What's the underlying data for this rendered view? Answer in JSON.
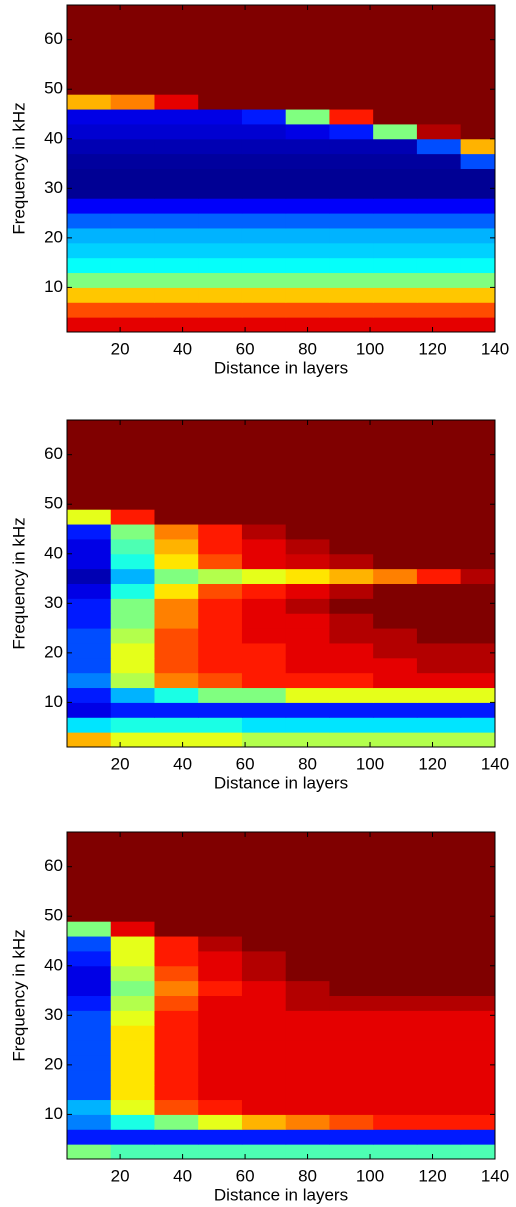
{
  "chart_data": [
    {
      "type": "heatmap",
      "colormap": "jet",
      "xlabel": "Distance in layers",
      "ylabel": "Frequency in kHz",
      "xlim": [
        3,
        140
      ],
      "ylim": [
        1,
        67
      ],
      "xticks": [
        20,
        40,
        60,
        80,
        100,
        120,
        140
      ],
      "yticks": [
        10,
        20,
        30,
        40,
        50,
        60
      ],
      "zlim": [
        0,
        1
      ],
      "x": [
        10,
        24,
        38,
        52,
        66,
        80,
        94,
        108,
        122,
        136
      ],
      "y": [
        2.5,
        5.5,
        8.5,
        11.5,
        14.5,
        17.5,
        20.5,
        23.5,
        26.5,
        29.5,
        32.5,
        35.5,
        38.5,
        41.5,
        44.5,
        47.5,
        50.5,
        53.5,
        56.5,
        59.5,
        62.5,
        65.5
      ],
      "z": [
        [
          0.9,
          0.9,
          0.9,
          0.9,
          0.9,
          0.9,
          0.9,
          0.9,
          0.9,
          0.9
        ],
        [
          0.8,
          0.8,
          0.8,
          0.8,
          0.8,
          0.8,
          0.8,
          0.8,
          0.8,
          0.8
        ],
        [
          0.68,
          0.68,
          0.68,
          0.68,
          0.68,
          0.68,
          0.68,
          0.68,
          0.68,
          0.68
        ],
        [
          0.5,
          0.5,
          0.5,
          0.5,
          0.5,
          0.5,
          0.5,
          0.5,
          0.5,
          0.5
        ],
        [
          0.38,
          0.38,
          0.38,
          0.38,
          0.38,
          0.38,
          0.38,
          0.38,
          0.38,
          0.38
        ],
        [
          0.33,
          0.33,
          0.33,
          0.33,
          0.33,
          0.33,
          0.33,
          0.33,
          0.33,
          0.33
        ],
        [
          0.3,
          0.3,
          0.3,
          0.3,
          0.3,
          0.3,
          0.3,
          0.3,
          0.3,
          0.3
        ],
        [
          0.22,
          0.22,
          0.22,
          0.22,
          0.22,
          0.22,
          0.22,
          0.22,
          0.22,
          0.22
        ],
        [
          0.12,
          0.12,
          0.12,
          0.12,
          0.12,
          0.12,
          0.12,
          0.12,
          0.12,
          0.12
        ],
        [
          0.02,
          0.02,
          0.02,
          0.02,
          0.02,
          0.02,
          0.02,
          0.02,
          0.02,
          0.02
        ],
        [
          0.02,
          0.02,
          0.02,
          0.02,
          0.02,
          0.02,
          0.02,
          0.02,
          0.02,
          0.02
        ],
        [
          0.03,
          0.03,
          0.03,
          0.03,
          0.03,
          0.03,
          0.03,
          0.03,
          0.03,
          0.2
        ],
        [
          0.05,
          0.05,
          0.05,
          0.05,
          0.05,
          0.05,
          0.05,
          0.05,
          0.2,
          0.7
        ],
        [
          0.08,
          0.08,
          0.08,
          0.08,
          0.08,
          0.1,
          0.15,
          0.5,
          0.95,
          1
        ],
        [
          0.1,
          0.1,
          0.1,
          0.1,
          0.15,
          0.5,
          0.85,
          1,
          1,
          1
        ],
        [
          0.7,
          0.75,
          0.9,
          1,
          1,
          1,
          1,
          1,
          1,
          1
        ],
        [
          1,
          1,
          1,
          1,
          1,
          1,
          1,
          1,
          1,
          1
        ],
        [
          1,
          1,
          1,
          1,
          1,
          1,
          1,
          1,
          1,
          1
        ],
        [
          1,
          1,
          1,
          1,
          1,
          1,
          1,
          1,
          1,
          1
        ],
        [
          1,
          1,
          1,
          1,
          1,
          1,
          1,
          1,
          1,
          1
        ],
        [
          1,
          1,
          1,
          1,
          1,
          1,
          1,
          1,
          1,
          1
        ],
        [
          1,
          1,
          1,
          1,
          1,
          1,
          1,
          1,
          1,
          1
        ]
      ]
    },
    {
      "type": "heatmap",
      "colormap": "jet",
      "xlabel": "Distance in layers",
      "ylabel": "Frequency in kHz",
      "xlim": [
        3,
        140
      ],
      "ylim": [
        1,
        67
      ],
      "xticks": [
        20,
        40,
        60,
        80,
        100,
        120,
        140
      ],
      "yticks": [
        10,
        20,
        30,
        40,
        50,
        60
      ],
      "zlim": [
        0,
        1
      ],
      "x": [
        10,
        24,
        38,
        52,
        66,
        80,
        94,
        108,
        122,
        136
      ],
      "y": [
        2.5,
        5.5,
        8.5,
        11.5,
        14.5,
        17.5,
        20.5,
        23.5,
        26.5,
        29.5,
        32.5,
        35.5,
        38.5,
        41.5,
        44.5,
        47.5,
        50.5,
        53.5,
        56.5,
        59.5,
        62.5,
        65.5
      ],
      "z": [
        [
          0.7,
          0.6,
          0.6,
          0.6,
          0.55,
          0.55,
          0.55,
          0.55,
          0.55,
          0.55
        ],
        [
          0.35,
          0.4,
          0.4,
          0.4,
          0.35,
          0.35,
          0.35,
          0.35,
          0.35,
          0.35
        ],
        [
          0.1,
          0.15,
          0.15,
          0.15,
          0.15,
          0.15,
          0.15,
          0.15,
          0.15,
          0.15
        ],
        [
          0.15,
          0.3,
          0.4,
          0.5,
          0.5,
          0.6,
          0.6,
          0.6,
          0.6,
          0.6
        ],
        [
          0.25,
          0.55,
          0.75,
          0.8,
          0.85,
          0.85,
          0.85,
          0.9,
          0.9,
          0.9
        ],
        [
          0.2,
          0.6,
          0.8,
          0.85,
          0.85,
          0.9,
          0.9,
          0.9,
          0.95,
          0.95
        ],
        [
          0.2,
          0.6,
          0.8,
          0.85,
          0.85,
          0.9,
          0.9,
          0.95,
          0.95,
          0.95
        ],
        [
          0.2,
          0.55,
          0.8,
          0.85,
          0.9,
          0.9,
          0.95,
          0.95,
          1,
          1
        ],
        [
          0.15,
          0.5,
          0.75,
          0.85,
          0.9,
          0.9,
          0.95,
          1,
          1,
          1
        ],
        [
          0.15,
          0.5,
          0.75,
          0.85,
          0.9,
          0.95,
          1,
          1,
          1,
          1
        ],
        [
          0.1,
          0.4,
          0.65,
          0.8,
          0.85,
          0.9,
          0.95,
          1,
          1,
          1
        ],
        [
          0.05,
          0.3,
          0.5,
          0.55,
          0.6,
          0.65,
          0.7,
          0.75,
          0.85,
          0.95
        ],
        [
          0.1,
          0.4,
          0.65,
          0.8,
          0.9,
          0.92,
          0.95,
          1,
          1,
          1
        ],
        [
          0.1,
          0.45,
          0.7,
          0.85,
          0.9,
          0.95,
          1,
          1,
          1,
          1
        ],
        [
          0.15,
          0.5,
          0.75,
          0.85,
          0.95,
          1,
          1,
          1,
          1,
          1
        ],
        [
          0.6,
          0.85,
          1,
          1,
          1,
          1,
          1,
          1,
          1,
          1
        ],
        [
          1,
          1,
          1,
          1,
          1,
          1,
          1,
          1,
          1,
          1
        ],
        [
          1,
          1,
          1,
          1,
          1,
          1,
          1,
          1,
          1,
          1
        ],
        [
          1,
          1,
          1,
          1,
          1,
          1,
          1,
          1,
          1,
          1
        ],
        [
          1,
          1,
          1,
          1,
          1,
          1,
          1,
          1,
          1,
          1
        ],
        [
          1,
          1,
          1,
          1,
          1,
          1,
          1,
          1,
          1,
          1
        ],
        [
          1,
          1,
          1,
          1,
          1,
          1,
          1,
          1,
          1,
          1
        ]
      ]
    },
    {
      "type": "heatmap",
      "colormap": "jet",
      "xlabel": "Distance in layers",
      "ylabel": "Frequency in kHz",
      "xlim": [
        3,
        140
      ],
      "ylim": [
        1,
        67
      ],
      "xticks": [
        20,
        40,
        60,
        80,
        100,
        120,
        140
      ],
      "yticks": [
        10,
        20,
        30,
        40,
        50,
        60
      ],
      "zlim": [
        0,
        1
      ],
      "x": [
        10,
        24,
        38,
        52,
        66,
        80,
        94,
        108,
        122,
        136
      ],
      "y": [
        2.5,
        5.5,
        8.5,
        11.5,
        14.5,
        17.5,
        20.5,
        23.5,
        26.5,
        29.5,
        32.5,
        35.5,
        38.5,
        41.5,
        44.5,
        47.5,
        50.5,
        53.5,
        56.5,
        59.5,
        62.5,
        65.5
      ],
      "z": [
        [
          0.5,
          0.45,
          0.45,
          0.45,
          0.45,
          0.45,
          0.45,
          0.45,
          0.45,
          0.45
        ],
        [
          0.15,
          0.15,
          0.15,
          0.15,
          0.15,
          0.15,
          0.15,
          0.15,
          0.15,
          0.15
        ],
        [
          0.25,
          0.4,
          0.5,
          0.6,
          0.7,
          0.75,
          0.8,
          0.85,
          0.85,
          0.85
        ],
        [
          0.3,
          0.6,
          0.8,
          0.85,
          0.9,
          0.9,
          0.9,
          0.9,
          0.9,
          0.9
        ],
        [
          0.2,
          0.65,
          0.85,
          0.9,
          0.9,
          0.9,
          0.9,
          0.9,
          0.9,
          0.9
        ],
        [
          0.2,
          0.65,
          0.85,
          0.9,
          0.9,
          0.9,
          0.9,
          0.9,
          0.9,
          0.9
        ],
        [
          0.2,
          0.65,
          0.85,
          0.9,
          0.9,
          0.9,
          0.9,
          0.9,
          0.9,
          0.9
        ],
        [
          0.2,
          0.65,
          0.85,
          0.9,
          0.9,
          0.9,
          0.9,
          0.9,
          0.9,
          0.9
        ],
        [
          0.2,
          0.65,
          0.85,
          0.9,
          0.9,
          0.9,
          0.9,
          0.9,
          0.9,
          0.9
        ],
        [
          0.2,
          0.6,
          0.85,
          0.9,
          0.9,
          0.9,
          0.9,
          0.9,
          0.9,
          0.9
        ],
        [
          0.15,
          0.55,
          0.8,
          0.9,
          0.9,
          0.95,
          0.95,
          0.95,
          0.95,
          0.95
        ],
        [
          0.1,
          0.5,
          0.75,
          0.85,
          0.9,
          0.95,
          1,
          1,
          1,
          1
        ],
        [
          0.1,
          0.55,
          0.8,
          0.9,
          0.95,
          1,
          1,
          1,
          1,
          1
        ],
        [
          0.15,
          0.6,
          0.85,
          0.9,
          0.95,
          1,
          1,
          1,
          1,
          1
        ],
        [
          0.2,
          0.6,
          0.85,
          0.95,
          1,
          1,
          1,
          1,
          1,
          1
        ],
        [
          0.5,
          0.9,
          1,
          1,
          1,
          1,
          1,
          1,
          1,
          1
        ],
        [
          1,
          1,
          1,
          1,
          1,
          1,
          1,
          1,
          1,
          1
        ],
        [
          1,
          1,
          1,
          1,
          1,
          1,
          1,
          1,
          1,
          1
        ],
        [
          1,
          1,
          1,
          1,
          1,
          1,
          1,
          1,
          1,
          1
        ],
        [
          1,
          1,
          1,
          1,
          1,
          1,
          1,
          1,
          1,
          1
        ],
        [
          1,
          1,
          1,
          1,
          1,
          1,
          1,
          1,
          1,
          1
        ],
        [
          1,
          1,
          1,
          1,
          1,
          1,
          1,
          1,
          1,
          1
        ]
      ]
    }
  ]
}
